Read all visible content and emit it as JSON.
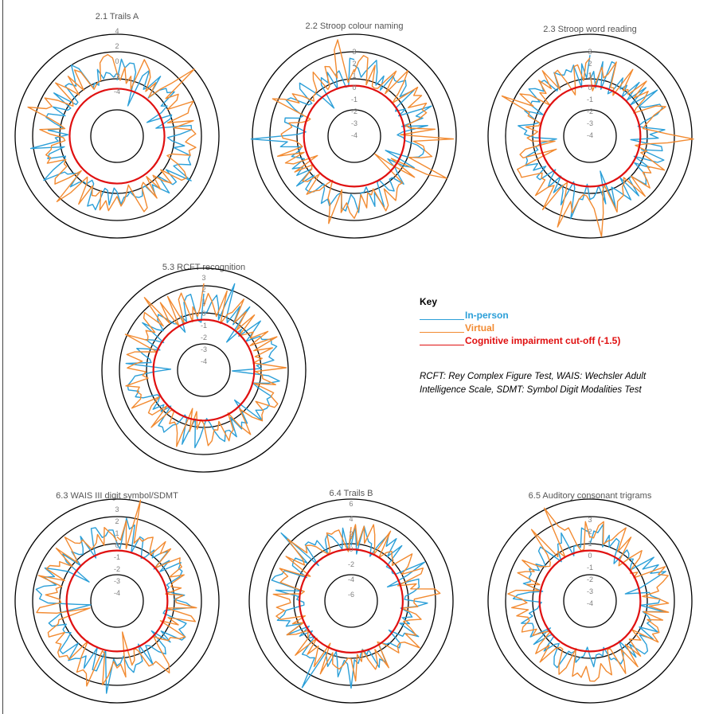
{
  "colors": {
    "in_person": "#2b9fd8",
    "virtual": "#f28a30",
    "cutoff": "#e01010",
    "ring": "#000000",
    "tick": "#808080"
  },
  "key": {
    "title": "Key",
    "items": [
      {
        "label": "In-person",
        "color": "#2b9fd8"
      },
      {
        "label": "Virtual",
        "color": "#f28a30"
      },
      {
        "label": "Cognitive impairment cut-off (-1.5)",
        "color": "#e01010"
      }
    ]
  },
  "notes": {
    "line1": "RCFT: Rey Complex Figure Test, WAIS: Wechsler Adult",
    "line2": "Intelligence Scale, SDMT: Symbol Digit Modalities Test"
  },
  "chart_data": [
    {
      "type": "radar",
      "title": "2.1 Trails A",
      "tick_labels": [
        "4",
        "2",
        "0",
        "-2",
        "-4"
      ],
      "cutoff": -1.5,
      "ylim": [
        -4,
        4
      ]
    },
    {
      "type": "radar",
      "title": "2.2 Stroop colour naming",
      "tick_labels": [
        "3",
        "2",
        "1",
        "0",
        "-1",
        "-2",
        "-3",
        "-4"
      ],
      "cutoff": -1.5,
      "ylim": [
        -4,
        3
      ]
    },
    {
      "type": "radar",
      "title": "2.3 Stroop word reading",
      "tick_labels": [
        "3",
        "2",
        "1",
        "0",
        "-1",
        "-2",
        "-3",
        "-4"
      ],
      "cutoff": -1.5,
      "ylim": [
        -4,
        3
      ]
    },
    {
      "type": "radar",
      "title": "5.3 RCFT recognition",
      "tick_labels": [
        "3",
        "2",
        "1",
        "0",
        "-1",
        "-2",
        "-3",
        "-4"
      ],
      "cutoff": -1.5,
      "ylim": [
        -4,
        3
      ]
    },
    {
      "type": "radar",
      "title": "6.3 WAIS III digit symbol/SDMT",
      "tick_labels": [
        "3",
        "2",
        "1",
        "0",
        "-1",
        "-2",
        "-3",
        "-4"
      ],
      "cutoff": -1.5,
      "ylim": [
        -4,
        3
      ]
    },
    {
      "type": "radar",
      "title": "6.4 Trails B",
      "tick_labels": [
        "6",
        "4",
        "2",
        "0",
        "-2",
        "-4",
        "-6"
      ],
      "cutoff": -1.5,
      "ylim": [
        -6,
        6
      ]
    },
    {
      "type": "radar",
      "title": "6.5 Auditory consonant trigrams",
      "tick_labels": [
        "3",
        "2",
        "1",
        "0",
        "-1",
        "-2",
        "-3",
        "-4"
      ],
      "cutoff": -1.5,
      "ylim": [
        -4,
        3
      ]
    }
  ]
}
